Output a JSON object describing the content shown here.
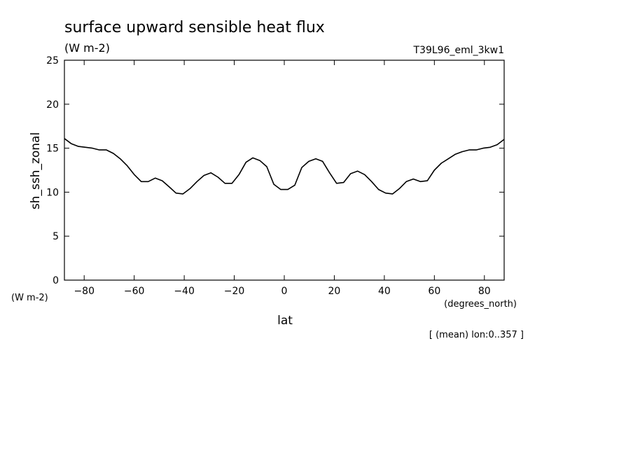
{
  "chart_data": {
    "type": "line",
    "title": "surface upward sensible heat flux",
    "subtitle": "(W m-2)",
    "run_label": "T39L96_eml_3kw1",
    "ylabel": "sh_ssh_zonal",
    "y_unit_label": "(W m-2)",
    "xlabel": "lat",
    "x_unit_label": "(degrees_north)",
    "footnote": "[ (mean) lon:0..357 ]",
    "xlim": [
      -87.9,
      87.9
    ],
    "ylim": [
      0,
      25
    ],
    "x_ticks": [
      "-80",
      "-60",
      "-40",
      "-20",
      "0",
      "20",
      "40",
      "60",
      "80"
    ],
    "y_ticks": [
      "0",
      "5",
      "10",
      "15",
      "20",
      "25"
    ],
    "grid": false,
    "series": [
      {
        "color": "#000000",
        "x": [
          -87.9,
          -85.1,
          -82.3,
          -79.5,
          -76.7,
          -73.9,
          -71.1,
          -68.3,
          -65.6,
          -62.8,
          -60.0,
          -57.2,
          -54.4,
          -51.6,
          -48.8,
          -46.0,
          -43.3,
          -40.5,
          -37.7,
          -34.9,
          -32.1,
          -29.3,
          -26.5,
          -23.7,
          -20.9,
          -18.1,
          -15.3,
          -12.6,
          -9.8,
          -7.0,
          -4.2,
          -1.4,
          1.4,
          4.2,
          7.0,
          9.8,
          12.6,
          15.3,
          18.1,
          20.9,
          23.7,
          26.5,
          29.3,
          32.1,
          34.9,
          37.7,
          40.5,
          43.3,
          46.0,
          48.8,
          51.6,
          54.4,
          57.2,
          60.0,
          62.8,
          65.6,
          68.3,
          71.1,
          73.9,
          76.7,
          79.5,
          82.3,
          85.1,
          87.9
        ],
        "y": [
          16.1,
          15.5,
          15.2,
          15.1,
          15.0,
          14.8,
          14.8,
          14.4,
          13.8,
          13.0,
          12.0,
          11.2,
          11.2,
          11.6,
          11.3,
          10.6,
          9.9,
          9.8,
          10.4,
          11.2,
          11.9,
          12.2,
          11.7,
          11.0,
          11.0,
          12.0,
          13.4,
          13.9,
          13.6,
          12.9,
          10.9,
          10.3,
          10.3,
          10.8,
          12.8,
          13.5,
          13.8,
          13.5,
          12.2,
          11.0,
          11.1,
          12.1,
          12.4,
          12.0,
          11.2,
          10.3,
          9.9,
          9.8,
          10.4,
          11.2,
          11.5,
          11.2,
          11.3,
          12.5,
          13.3,
          13.8,
          14.3,
          14.6,
          14.8,
          14.8,
          15.0,
          15.1,
          15.4,
          16.0
        ]
      }
    ]
  }
}
